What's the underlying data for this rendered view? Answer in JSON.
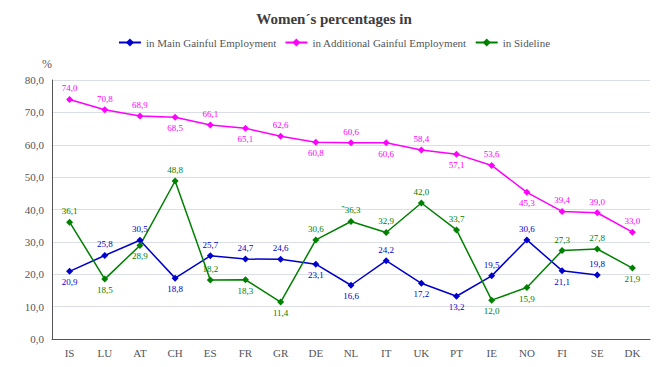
{
  "chart_data": {
    "type": "line",
    "title": "Women´s percentages in",
    "ylabel": "%",
    "categories": [
      "IS",
      "LU",
      "AT",
      "CH",
      "ES",
      "FR",
      "GR",
      "DE",
      "NL",
      "IT",
      "UK",
      "PT",
      "IE",
      "NO",
      "FI",
      "SE",
      "DK"
    ],
    "series": [
      {
        "name": "in Main Gainful Employment",
        "color": "#0000CC",
        "marker": "diamond",
        "values": [
          20.9,
          25.8,
          30.5,
          18.8,
          25.7,
          24.7,
          24.6,
          23.1,
          16.6,
          24.2,
          17.2,
          13.2,
          19.5,
          30.6,
          21.1,
          19.8,
          null
        ],
        "value_labels": [
          "20,9",
          "25,8",
          "30,5",
          "18,8",
          "25,7",
          "24,7",
          "24,6",
          "23,1",
          "16,6",
          "24,2",
          "17,2",
          "13,2",
          "19,5",
          "30,6",
          "21,1",
          "19,8",
          null
        ]
      },
      {
        "name": "in Additional Gainful Employment",
        "color": "#FF00FF",
        "marker": "diamond",
        "values": [
          74.0,
          70.8,
          68.9,
          68.5,
          66.1,
          65.1,
          62.6,
          60.8,
          60.6,
          60.6,
          58.4,
          57.1,
          53.6,
          45.3,
          39.4,
          39.0,
          33.0
        ],
        "value_labels": [
          "74,0",
          "70,8",
          "68,9",
          "68,5",
          "66,1",
          "65,1",
          "62,6",
          "60,8",
          "60,6",
          "60,6",
          "58,4",
          "57,1",
          "53,6",
          "45,3",
          "39,4",
          "39,0",
          "33,0"
        ]
      },
      {
        "name": "in Sideline",
        "color": "#008000",
        "marker": "diamond",
        "values": [
          36.1,
          18.5,
          28.9,
          48.8,
          18.2,
          18.3,
          11.4,
          30.6,
          36.3,
          32.9,
          42.0,
          33.7,
          12.0,
          15.9,
          27.3,
          27.8,
          21.9
        ],
        "value_labels": [
          "36,1",
          "18,5",
          "28,9",
          "48,8",
          "18,2",
          "18,3",
          "11,4",
          "30,6",
          "‶36,3",
          "32,9",
          "42,0",
          "33,7",
          "12,0",
          "15,9",
          "27,3",
          "27,8",
          "21,9"
        ]
      }
    ],
    "ylim": [
      0.0,
      80.0
    ],
    "yticks": [
      {
        "value": 0.0,
        "label": "0,0"
      },
      {
        "value": 10.0,
        "label": "10,0"
      },
      {
        "value": 20.0,
        "label": "20,0"
      },
      {
        "value": 30.0,
        "label": "30,0"
      },
      {
        "value": 40.0,
        "label": "40,0"
      },
      {
        "value": 50.0,
        "label": "50,0"
      },
      {
        "value": 60.0,
        "label": "60,0"
      },
      {
        "value": 70.0,
        "label": "70,0"
      },
      {
        "value": 80.0,
        "label": "80,0"
      }
    ],
    "grid": true,
    "legend": "top",
    "data_labels": true
  }
}
